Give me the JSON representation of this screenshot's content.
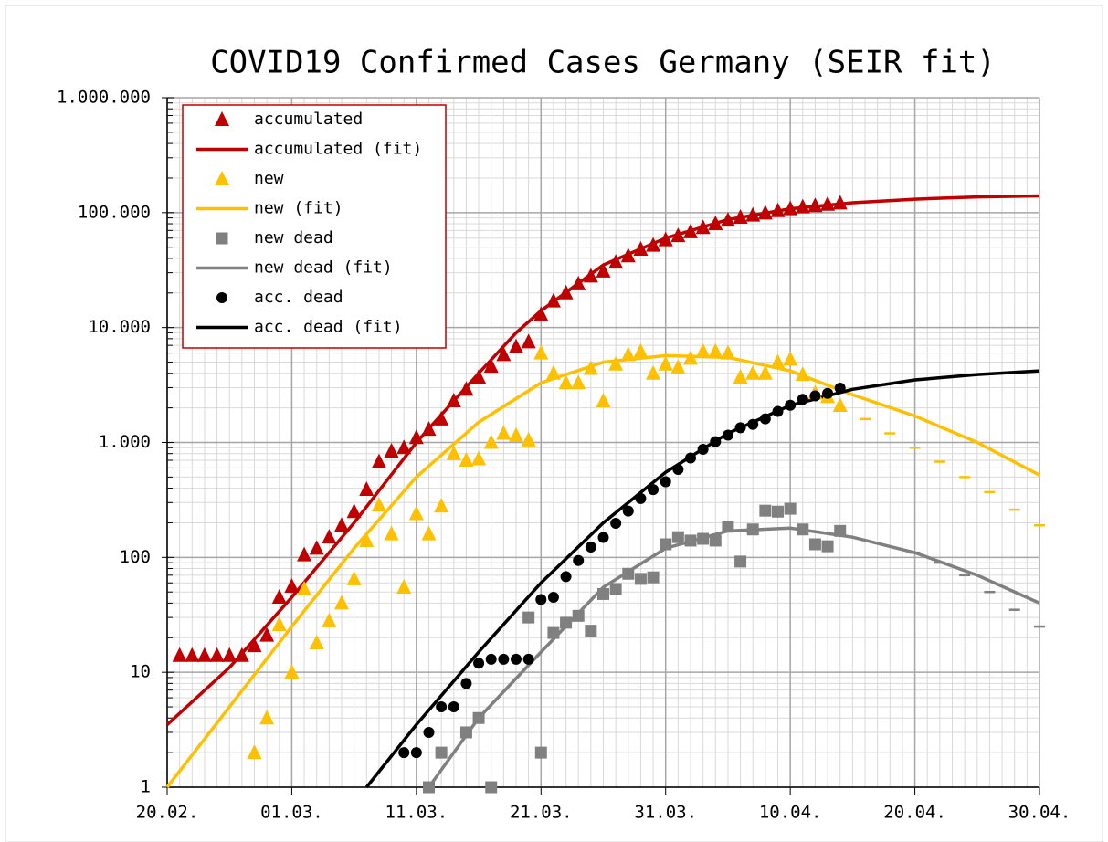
{
  "chart_data": {
    "type": "line",
    "title": "COVID19 Confirmed Cases Germany (SEIR fit)",
    "log_y": true,
    "grid": true,
    "legend": "upper left",
    "xlim": [
      0,
      70
    ],
    "xticks": [
      {
        "value": 0,
        "label": "20.02."
      },
      {
        "value": 10,
        "label": "01.03."
      },
      {
        "value": 20,
        "label": "11.03."
      },
      {
        "value": 30,
        "label": "21.03."
      },
      {
        "value": 40,
        "label": "31.03."
      },
      {
        "value": 50,
        "label": "10.04."
      },
      {
        "value": 60,
        "label": "20.04."
      },
      {
        "value": 70,
        "label": "30.04."
      }
    ],
    "ylim": [
      1,
      1000000
    ],
    "yticks": [
      1,
      10,
      100,
      {
        "value": 1000,
        "label": "1.000"
      },
      {
        "value": 10000,
        "label": "10.000"
      },
      {
        "value": 100000,
        "label": "100.000"
      },
      {
        "value": 1000000,
        "label": "1.000.000"
      }
    ],
    "series": [
      {
        "name": "accumulated",
        "color": "#c00000",
        "marker": "triangle",
        "x": [
          1,
          2,
          3,
          4,
          5,
          6,
          7,
          8,
          9,
          10,
          11,
          12,
          13,
          14,
          15,
          16,
          17,
          18,
          19,
          20,
          21,
          22,
          23,
          24,
          25,
          26,
          27,
          28,
          29,
          30,
          31,
          32,
          33,
          34,
          35,
          36,
          37,
          38,
          39,
          40,
          41,
          42,
          43,
          44,
          45,
          46,
          47,
          48,
          49,
          50,
          51,
          52,
          53,
          54
        ],
        "values": [
          14,
          14,
          14,
          14,
          14,
          14,
          17,
          21,
          45,
          56,
          105,
          120,
          150,
          190,
          250,
          390,
          680,
          840,
          900,
          1100,
          1300,
          1600,
          2300,
          2900,
          3700,
          4600,
          5800,
          6800,
          7500,
          13000,
          17000,
          20000,
          24000,
          28000,
          31000,
          37000,
          42000,
          48000,
          52000,
          58000,
          63000,
          68000,
          74000,
          80000,
          86000,
          91000,
          95000,
          99000,
          104000,
          108000,
          112000,
          115000,
          118000,
          121000
        ]
      },
      {
        "name": "accumulated (fit)",
        "color": "#c00000",
        "marker": "line",
        "x": [
          0,
          5,
          10,
          15,
          20,
          25,
          28,
          30,
          35,
          40,
          45,
          50,
          55,
          60,
          65,
          70
        ],
        "values": [
          3.5,
          11,
          45,
          200,
          1000,
          4000,
          9000,
          14000,
          35000,
          60000,
          87000,
          108000,
          122000,
          131000,
          137000,
          140000
        ]
      },
      {
        "name": "new",
        "color": "#ffc000",
        "marker": "triangle",
        "x": [
          7,
          8,
          9,
          10,
          11,
          12,
          13,
          14,
          15,
          16,
          17,
          18,
          19,
          20,
          21,
          22,
          23,
          24,
          25,
          26,
          27,
          28,
          29,
          30,
          31,
          32,
          33,
          34,
          35,
          36,
          37,
          38,
          39,
          40,
          41,
          42,
          43,
          44,
          45,
          46,
          47,
          48,
          49,
          50,
          51,
          52,
          53,
          54
        ],
        "values": [
          2,
          4,
          26,
          10,
          53,
          18,
          28,
          40,
          65,
          140,
          285,
          160,
          55,
          240,
          160,
          280,
          800,
          700,
          720,
          1000,
          1200,
          1150,
          1050,
          6000,
          4000,
          3300,
          3300,
          4400,
          2300,
          4800,
          5800,
          6200,
          4000,
          4800,
          4500,
          5400,
          6200,
          6200,
          6000,
          3700,
          4000,
          4000,
          5000,
          5300,
          3900,
          2700,
          2500,
          2100
        ]
      },
      {
        "name": "new (fit)",
        "color": "#ffc000",
        "marker": "line",
        "x": [
          0,
          5,
          10,
          15,
          20,
          25,
          30,
          35,
          40,
          45,
          50,
          55,
          60,
          65,
          70
        ],
        "values": [
          1,
          5,
          25,
          120,
          500,
          1500,
          3300,
          5000,
          5700,
          5500,
          4200,
          2600,
          1700,
          1000,
          520
        ]
      },
      {
        "name": "new dead",
        "color": "#808080",
        "marker": "square",
        "x": [
          21,
          22,
          24,
          25,
          26,
          29,
          30,
          31,
          32,
          33,
          34,
          35,
          36,
          37,
          38,
          39,
          40,
          41,
          42,
          43,
          44,
          45,
          46,
          47,
          48,
          49,
          50,
          51,
          52,
          53,
          54
        ],
        "values": [
          1,
          2,
          3,
          4,
          1,
          30,
          2,
          22,
          27,
          31,
          23,
          48,
          53,
          72,
          65,
          67,
          130,
          150,
          140,
          145,
          140,
          185,
          92,
          175,
          255,
          250,
          265,
          175,
          130,
          125,
          170
        ]
      },
      {
        "name": "new dead (fit)",
        "color": "#808080",
        "marker": "line",
        "x": [
          21,
          25,
          30,
          35,
          40,
          45,
          50,
          55,
          60,
          65,
          70
        ],
        "values": [
          1,
          4,
          15,
          55,
          120,
          170,
          180,
          150,
          110,
          70,
          40
        ]
      },
      {
        "name": "acc. dead",
        "color": "#000000",
        "marker": "circle",
        "x": [
          19,
          20,
          21,
          22,
          23,
          24,
          25,
          26,
          27,
          28,
          29,
          30,
          31,
          32,
          33,
          34,
          35,
          36,
          37,
          38,
          39,
          40,
          41,
          42,
          43,
          44,
          45,
          46,
          47,
          48,
          49,
          50,
          51,
          52,
          53,
          54
        ],
        "values": [
          2,
          2,
          3,
          5,
          5,
          8,
          12,
          13,
          13,
          13,
          13,
          43,
          45,
          68,
          94,
          123,
          149,
          198,
          253,
          325,
          389,
          455,
          583,
          732,
          872,
          1017,
          1158,
          1342,
          1434,
          1607,
          1861,
          2107,
          2373,
          2544,
          2673,
          2969
        ]
      },
      {
        "name": "acc. dead (fit)",
        "color": "#000000",
        "marker": "line",
        "x": [
          16,
          20,
          25,
          30,
          35,
          40,
          45,
          50,
          55,
          60,
          65,
          70
        ],
        "values": [
          1,
          3.5,
          15,
          60,
          200,
          550,
          1200,
          2100,
          2900,
          3500,
          3900,
          4200
        ]
      },
      {
        "color": "#ffc000",
        "marker": "dash",
        "x": [
          56,
          58,
          60,
          62,
          64,
          66,
          68,
          70
        ],
        "values": [
          1600,
          1200,
          900,
          680,
          500,
          370,
          260,
          190
        ]
      },
      {
        "color": "#808080",
        "marker": "dash",
        "x": [
          60,
          62,
          64,
          66,
          68,
          70
        ],
        "values": [
          110,
          90,
          70,
          50,
          35,
          25
        ]
      }
    ]
  }
}
